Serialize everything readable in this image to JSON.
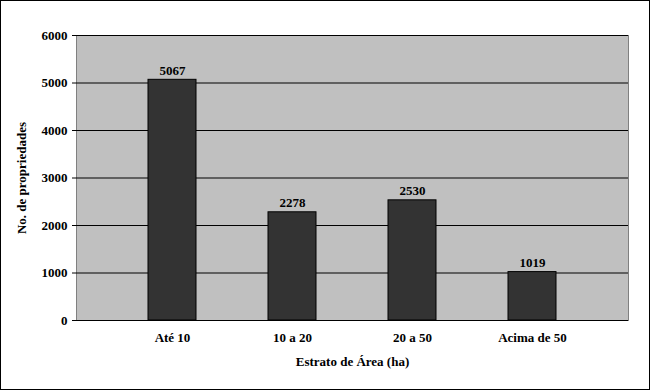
{
  "chart_data": {
    "type": "bar",
    "x_label": "Estrato de Área (ha)",
    "y_label": "No. de propriedades",
    "categories": [
      "Até 10",
      "10 a 20",
      "20 a 50",
      "Acima de 50"
    ],
    "values": [
      5067,
      2278,
      2530,
      1019
    ],
    "color": "#333333",
    "ylim": [
      0,
      6000
    ],
    "yticks": [
      0,
      1000,
      2000,
      3000,
      4000,
      5000,
      6000
    ],
    "grid": true,
    "data_labels": true
  }
}
